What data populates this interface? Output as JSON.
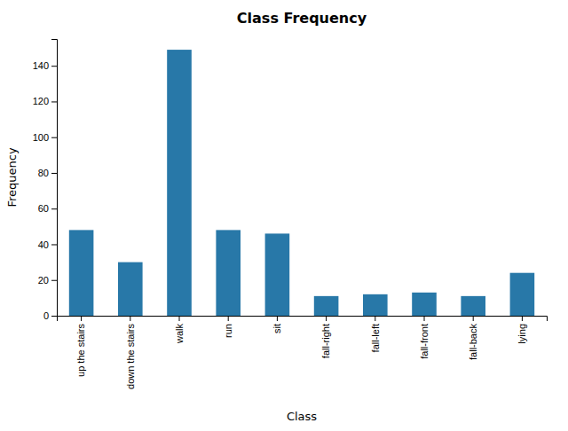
{
  "chart_data": {
    "type": "bar",
    "title": "Class Frequency",
    "xlabel": "Class",
    "ylabel": "Frequency",
    "categories": [
      "up the stairs",
      "down the stairs",
      "walk",
      "run",
      "sit",
      "fall-right",
      "fall-left",
      "fall-front",
      "fall-back",
      "lying"
    ],
    "values": [
      48,
      30,
      149,
      48,
      46,
      11,
      12,
      13,
      11,
      24
    ],
    "color": "#2878a8",
    "ylim": [
      0,
      155
    ],
    "yticks": [
      0,
      20,
      40,
      60,
      80,
      100,
      120,
      140
    ],
    "grid": false
  }
}
